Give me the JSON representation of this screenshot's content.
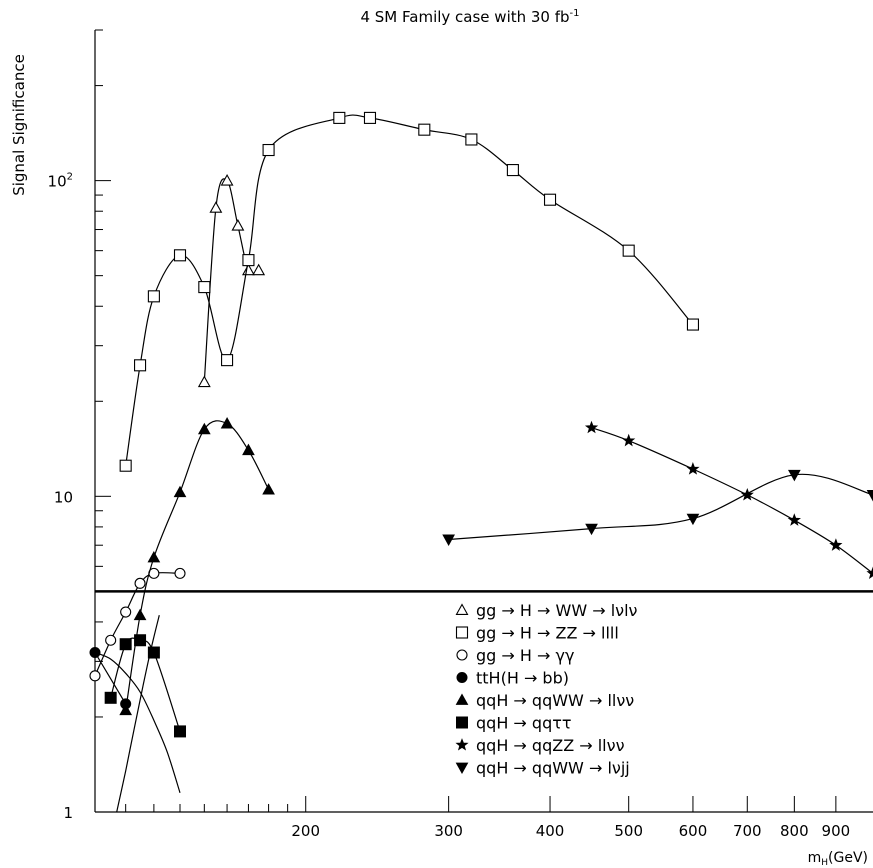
{
  "chart_data": {
    "type": "scatter",
    "title": "4 SM Family case with 30 fb",
    "title_superscript": "-1",
    "ylabel": "Signal Significance",
    "xlabel_main": "m",
    "xlabel_sub": "H",
    "xlabel_tail": "(GeV)",
    "x_scale": "log",
    "y_scale": "log",
    "xlim": [
      110,
      1000
    ],
    "ylim": [
      1,
      300
    ],
    "x_ticks": [
      200,
      300,
      400,
      500,
      600,
      700,
      800,
      900
    ],
    "x_tick_labels": [
      "200",
      "300",
      "400",
      "500",
      "600",
      "700",
      "800",
      "900"
    ],
    "y_ticks": [
      {
        "value": 1,
        "base": "1",
        "exp": ""
      },
      {
        "value": 10,
        "base": "10",
        "exp": ""
      },
      {
        "value": 100,
        "base": "10",
        "exp": "2"
      }
    ],
    "grid": false,
    "threshold_line": 5,
    "legend_position": "bottom-right",
    "series": [
      {
        "name": "gg → H → WW → lνlν",
        "marker": "triangle-open",
        "x": [
          150,
          155,
          160,
          165,
          170,
          175
        ],
        "y": [
          23,
          82,
          100,
          72,
          52,
          52
        ]
      },
      {
        "name": "gg → H → ZZ → llll",
        "marker": "square-open",
        "x": [
          120,
          125,
          130,
          140,
          150,
          160,
          170,
          180,
          220,
          240,
          280,
          320,
          360,
          400,
          500,
          600
        ],
        "y": [
          12.5,
          26,
          43,
          58,
          46,
          27,
          56,
          125,
          158,
          158,
          145,
          135,
          108,
          87,
          60,
          35
        ]
      },
      {
        "name": "gg → H → γγ",
        "marker": "circle-open",
        "x": [
          110,
          115,
          120,
          125,
          130,
          140
        ],
        "y": [
          2.7,
          3.5,
          4.3,
          5.3,
          5.7,
          5.7
        ]
      },
      {
        "name": "ttH(H → bb)",
        "marker": "circle-filled",
        "x": [
          110,
          120
        ],
        "y": [
          3.2,
          2.2
        ]
      },
      {
        "name": "qqH → qqWW → llνν",
        "marker": "triangle-filled",
        "x": [
          120,
          125,
          130,
          140,
          150,
          160,
          170,
          180
        ],
        "y": [
          2.1,
          4.2,
          6.4,
          10.3,
          16.3,
          17.0,
          14.0,
          10.5
        ]
      },
      {
        "name": "qqH → qqττ",
        "marker": "square-filled",
        "x": [
          115,
          120,
          125,
          130,
          140
        ],
        "y": [
          2.3,
          3.4,
          3.5,
          3.2,
          1.8
        ]
      },
      {
        "name": "qqH → qqZZ → llνν",
        "marker": "star",
        "x": [
          450,
          500,
          600,
          700,
          800,
          900,
          1000
        ],
        "y": [
          16.5,
          15.0,
          12.2,
          10.1,
          8.4,
          7.0,
          5.7
        ]
      },
      {
        "name": "qqH → qqWW → lνjj",
        "marker": "triangle-down-filled",
        "x": [
          300,
          450,
          600,
          800,
          1000
        ],
        "y": [
          7.3,
          7.9,
          8.5,
          11.7,
          10.1
        ]
      }
    ],
    "extra_curves": [
      {
        "x": [
          110,
          115,
          120,
          125,
          130,
          135,
          140
        ],
        "y": [
          3.2,
          3.05,
          2.75,
          2.4,
          1.95,
          1.55,
          1.15
        ]
      },
      {
        "x": [
          117,
          120,
          123,
          126,
          129,
          132
        ],
        "y": [
          1.0,
          1.35,
          1.85,
          2.5,
          3.3,
          4.2
        ]
      }
    ]
  }
}
